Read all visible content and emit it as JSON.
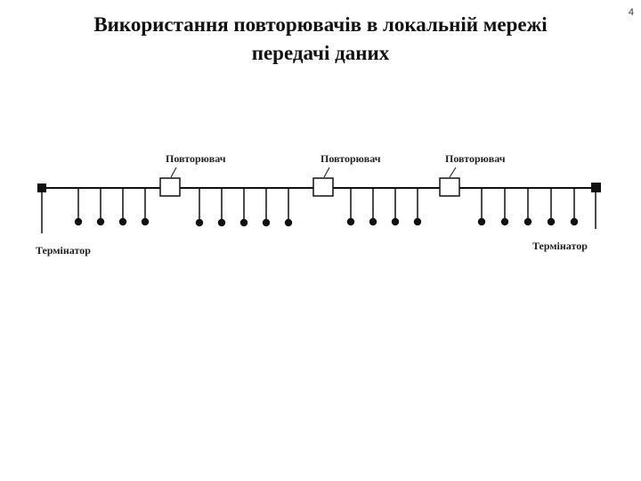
{
  "page_number": "4",
  "title_line1": "Використання повторювачів в локальній мережі",
  "title_line2": "передачі даних",
  "diagram": {
    "repeater_label": "Повторювач",
    "terminator_label": "Термінатор",
    "repeater_count": 3,
    "segments": [
      {
        "stations": 4
      },
      {
        "stations": 5
      },
      {
        "stations": 4
      },
      {
        "stations": 5
      }
    ],
    "colors": {
      "line": "#111111",
      "box": "#ffffff"
    }
  }
}
